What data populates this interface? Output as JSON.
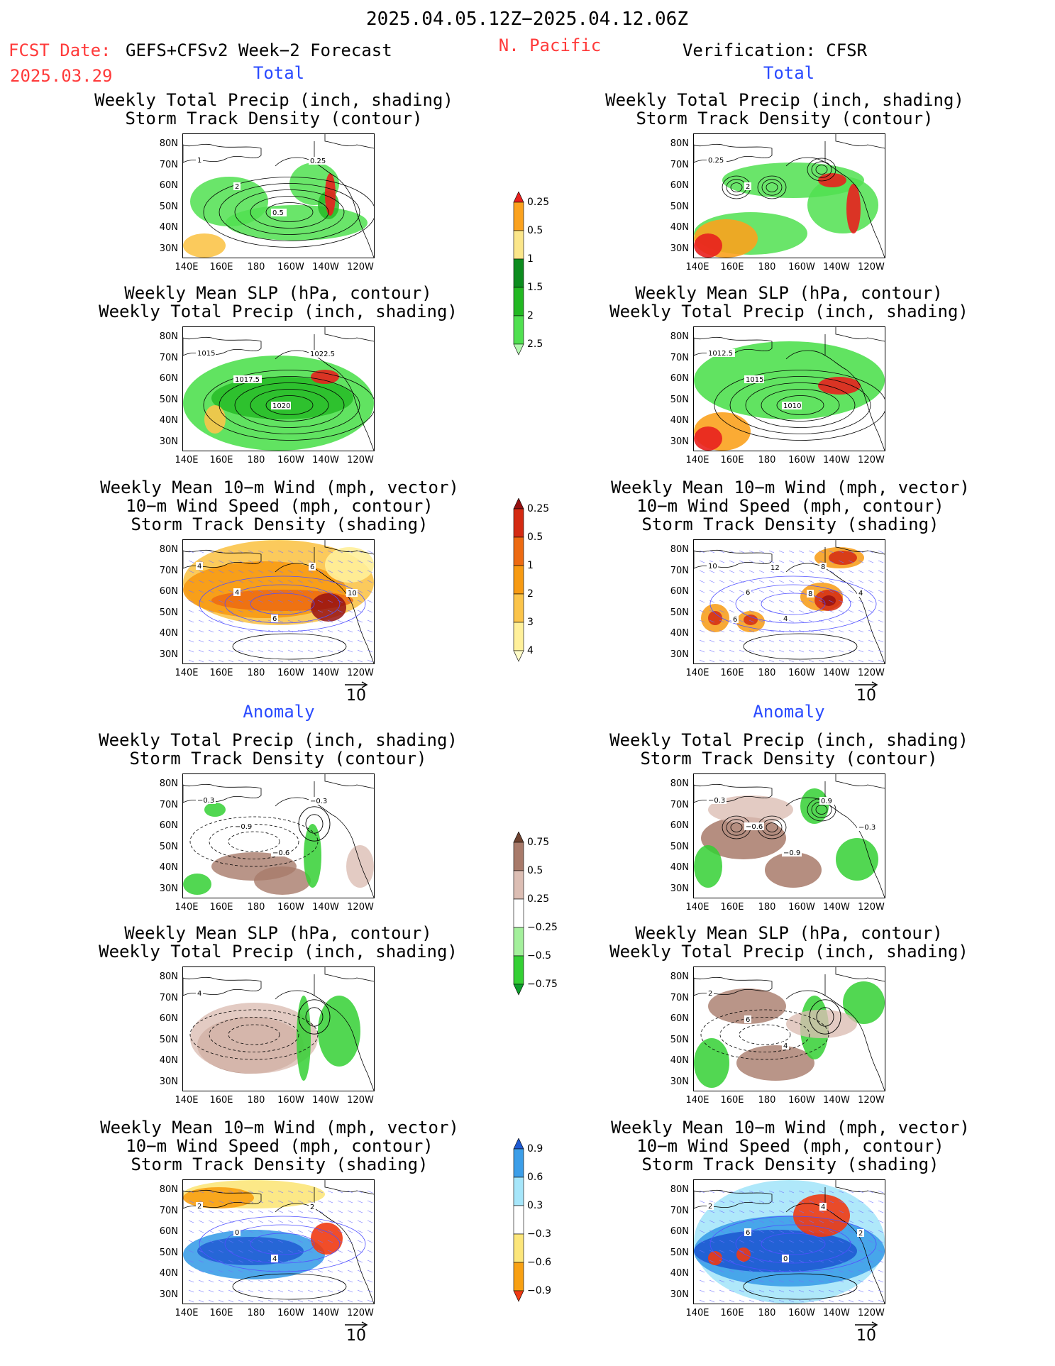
{
  "header": {
    "date_range": "2025.04.05.12Z−2025.04.12.06Z",
    "region": "N. Pacific",
    "fcst_label": "FCST Date:",
    "fcst_model": "GEFS+CFSv2 Week−2 Forecast",
    "fcst_date": "2025.03.29",
    "verification": "Verification: CFSR"
  },
  "sections": {
    "total": "Total",
    "anomaly": "Anomaly"
  },
  "titles": {
    "precip_storm": [
      "Weekly Total Precip (inch, shading)",
      "Storm Track Density (contour)"
    ],
    "slp_precip": [
      "Weekly Mean SLP (hPa, contour)",
      "Weekly Total Precip (inch, shading)"
    ],
    "wind_storm": [
      "Weekly Mean 10−m Wind (mph, vector)",
      "10−m Wind Speed (mph, contour)",
      "Storm Track Density (shading)"
    ]
  },
  "axes": {
    "lat_labels": [
      "80N",
      "70N",
      "60N",
      "50N",
      "40N",
      "30N"
    ],
    "lon_labels": [
      "140E",
      "160E",
      "180",
      "160W",
      "140W",
      "120W"
    ]
  },
  "vector_scale": "10",
  "colorbars": {
    "precip_total": {
      "levels": [
        "0.25",
        "0.5",
        "1",
        "1.5",
        "2",
        "2.5"
      ],
      "colors": [
        "#b4f7b0",
        "#50e050",
        "#22b822",
        "#0c8c1e",
        "#fbe68a",
        "#fba21e",
        "#e8201e"
      ]
    },
    "storm_total": {
      "levels": [
        "0.25",
        "0.5",
        "1",
        "2",
        "3",
        "4"
      ],
      "colors": [
        "#fffcc8",
        "#fff09a",
        "#fbc44a",
        "#f79a12",
        "#ed6a12",
        "#d42a12",
        "#961010"
      ]
    },
    "precip_anom": {
      "levels": [
        "0.75",
        "0.5",
        "0.25",
        "−0.25",
        "−0.5",
        "−0.75"
      ],
      "colors": [
        "#0c9c2a",
        "#34d034",
        "#a4f09c",
        "#ffffff",
        "#dcbeb4",
        "#a87a6a",
        "#6e4230"
      ]
    },
    "storm_anom": {
      "levels": [
        "0.9",
        "0.6",
        "0.3",
        "−0.3",
        "−0.6",
        "−0.9"
      ],
      "colors": [
        "#f03a12",
        "#f8a012",
        "#fce67a",
        "#ffffff",
        "#a6e6fa",
        "#3c9ee8",
        "#1e5ad2"
      ]
    }
  },
  "maps": [
    {
      "id": "fc-total-precip",
      "labels": [
        "1",
        "2",
        "0.5",
        "0.25"
      ]
    },
    {
      "id": "vr-total-precip",
      "labels": [
        "0.25",
        "2"
      ]
    },
    {
      "id": "fc-total-slp",
      "labels": [
        "1015",
        "1017.5",
        "1020",
        "1022.5"
      ]
    },
    {
      "id": "vr-total-slp",
      "labels": [
        "1012.5",
        "1015",
        "1010"
      ]
    },
    {
      "id": "fc-total-wind",
      "labels": [
        "4",
        "4",
        "6",
        "6",
        "10"
      ]
    },
    {
      "id": "vr-total-wind",
      "labels": [
        "10",
        "6",
        "4",
        "8",
        "4",
        "6",
        "12",
        "8"
      ]
    },
    {
      "id": "fc-anom-precip",
      "labels": [
        "−0.3",
        "−0.9",
        "−0.6",
        "−0.3"
      ]
    },
    {
      "id": "vr-anom-precip",
      "labels": [
        "−0.3",
        "−0.6",
        "−0.9",
        "0.9",
        "−0.3"
      ]
    },
    {
      "id": "fc-anom-slp",
      "labels": [
        "4"
      ]
    },
    {
      "id": "vr-anom-slp",
      "labels": [
        "2",
        "6",
        "4"
      ]
    },
    {
      "id": "fc-anom-wind",
      "labels": [
        "2",
        "0",
        "4",
        "2"
      ]
    },
    {
      "id": "vr-anom-wind",
      "labels": [
        "2",
        "6",
        "0",
        "4",
        "2"
      ]
    }
  ]
}
